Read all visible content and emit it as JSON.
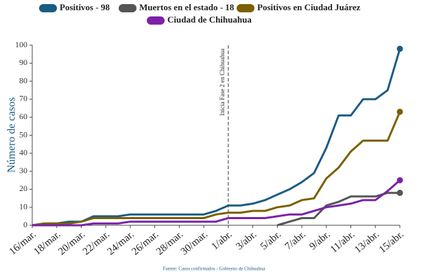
{
  "chart_data": {
    "type": "line",
    "y_label": "Número de casos",
    "source": "Fuente: Casos confirmados - Gobierno de Chihuahua",
    "annotations": [
      {
        "text": "Inicia Fase 2 en Chihuahua",
        "x": "1/abr."
      }
    ],
    "categories": [
      "16/mar.",
      null,
      "18/mar.",
      null,
      "20/mar.",
      null,
      "22/mar.",
      null,
      "24/mar.",
      null,
      "26/mar.",
      null,
      "28/mar.",
      null,
      "30/mar.",
      null,
      "1/abr.",
      null,
      "3/abr.",
      null,
      "5/abr.",
      null,
      "7/abr.",
      null,
      "9/abr.",
      null,
      "11/abr.",
      null,
      "13/abr.",
      null,
      "15/abr."
    ],
    "series": [
      {
        "name": "Positivos - 98",
        "color": "#1b5c84",
        "values": [
          0,
          1,
          1,
          2,
          2,
          5,
          5,
          5,
          6,
          6,
          6,
          6,
          6,
          6,
          6,
          8,
          11,
          11,
          12,
          14,
          17,
          20,
          24,
          29,
          43,
          61,
          61,
          70,
          70,
          75,
          98
        ]
      },
      {
        "name": "Muertos en el estado - 18",
        "color": "#555555",
        "values": [
          null,
          null,
          null,
          null,
          null,
          null,
          null,
          null,
          null,
          null,
          null,
          null,
          null,
          null,
          null,
          null,
          null,
          null,
          null,
          null,
          0,
          2,
          4,
          4,
          11,
          13,
          16,
          16,
          16,
          18,
          18
        ]
      },
      {
        "name": "Positivos en Ciudad Juárez",
        "color": "#7b6000",
        "values": [
          0,
          1,
          1,
          1,
          2,
          4,
          4,
          4,
          4,
          4,
          4,
          4,
          4,
          4,
          4,
          6,
          7,
          7,
          8,
          8,
          10,
          11,
          14,
          15,
          26,
          32,
          41,
          47,
          47,
          47,
          63
        ]
      },
      {
        "name": "Ciudad de Chihuahua",
        "color": "#7b22a8",
        "values": [
          0,
          0,
          0,
          0,
          0,
          1,
          1,
          1,
          2,
          2,
          2,
          2,
          2,
          2,
          2,
          2,
          4,
          4,
          4,
          4,
          5,
          6,
          6,
          8,
          10,
          11,
          12,
          14,
          14,
          19,
          25
        ]
      }
    ],
    "ylim": [
      0,
      100
    ],
    "yticks": [
      0,
      10,
      20,
      30,
      40,
      50,
      60,
      70,
      80,
      90,
      100
    ],
    "grid": false
  }
}
